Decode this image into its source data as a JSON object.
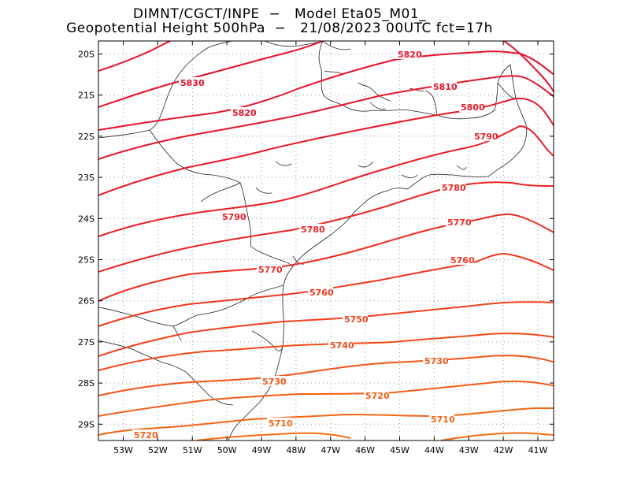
{
  "title_line1": "DIMNT/CGCT/INPE  −   Model Eta05_M01_",
  "title_line2": "Geopotential Height 500hPa  −   21/08/2023 00UTC fct=17h",
  "lon_ticks": [
    "53W",
    "52W",
    "51W",
    "50W",
    "49W",
    "48W",
    "47W",
    "46W",
    "45W",
    "44W",
    "43W",
    "42W",
    "41W"
  ],
  "lat_ticks": [
    "20S",
    "21S",
    "22S",
    "23S",
    "24S",
    "25S",
    "26S",
    "27S",
    "28S",
    "29S"
  ],
  "contours": [
    {
      "value": 5830,
      "label": "5830",
      "color": "#e8102a"
    },
    {
      "value": 5820,
      "label": "5820",
      "color": "#e8122a"
    },
    {
      "value": 5810,
      "label": "5810",
      "color": "#e81428"
    },
    {
      "value": 5800,
      "label": "5800",
      "color": "#e81826"
    },
    {
      "value": 5790,
      "label": "5790",
      "color": "#ea1c24"
    },
    {
      "value": 5780,
      "label": "5780",
      "color": "#ec2422"
    },
    {
      "value": 5770,
      "label": "5770",
      "color": "#ee2c20"
    },
    {
      "value": 5760,
      "label": "5760",
      "color": "#f0361c"
    },
    {
      "value": 5750,
      "label": "5750",
      "color": "#f2401a"
    },
    {
      "value": 5740,
      "label": "5740",
      "color": "#f44a18"
    },
    {
      "value": 5730,
      "label": "5730",
      "color": "#f45416"
    },
    {
      "value": 5720,
      "label": "5720",
      "color": "#f65c14"
    },
    {
      "value": 5710,
      "label": "5710",
      "color": "#f66412"
    }
  ]
}
